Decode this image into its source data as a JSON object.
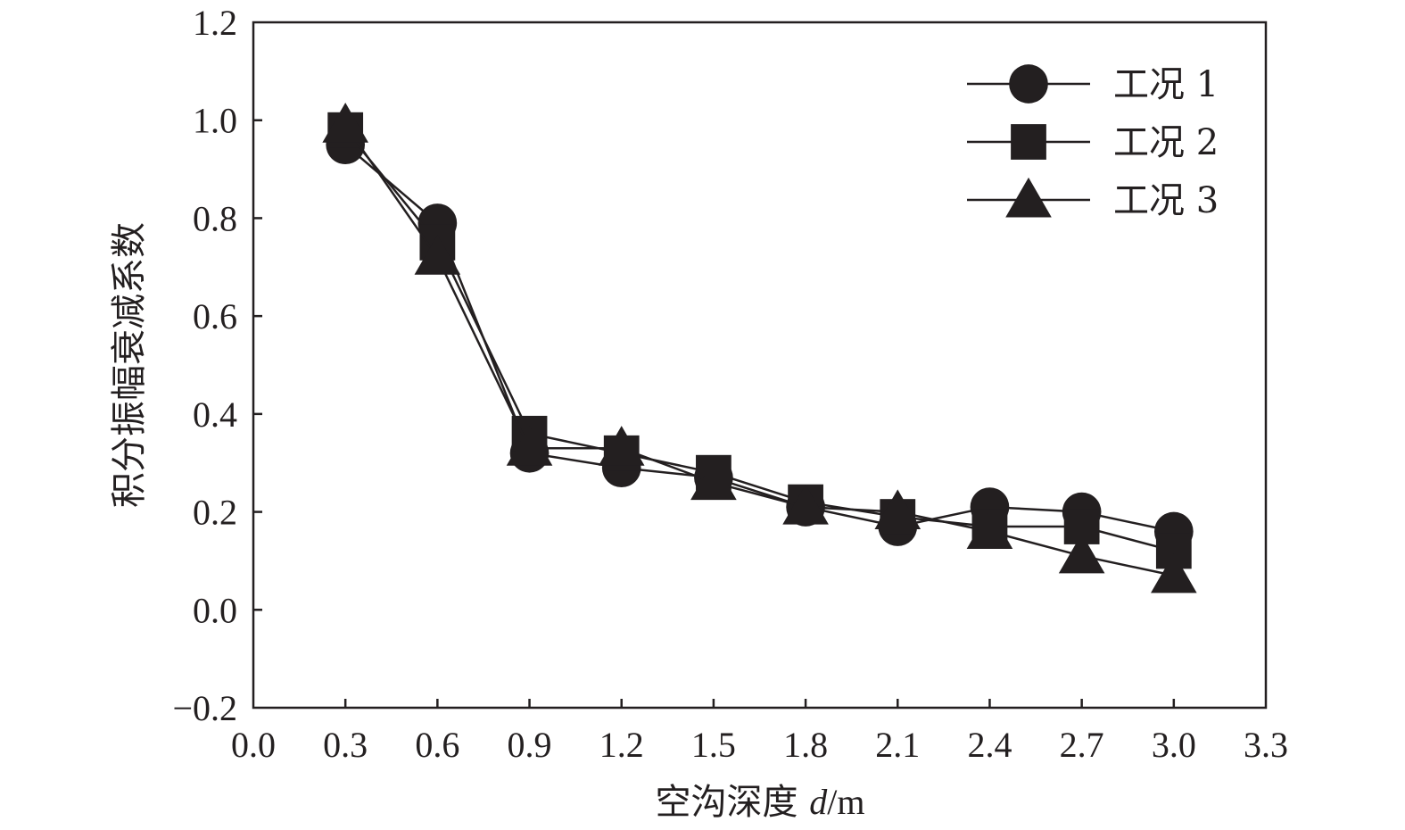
{
  "chart_data": {
    "type": "line",
    "xlabel": "空沟深度 d/m",
    "xlabel_prefix": "空沟深度 ",
    "xlabel_italic": "d",
    "xlabel_suffix": "/m",
    "ylabel": "积分振幅衰减系数",
    "xlim": [
      0.0,
      3.3
    ],
    "ylim": [
      -0.2,
      1.2
    ],
    "x_ticks": [
      "0.0",
      "0.3",
      "0.6",
      "0.9",
      "1.2",
      "1.5",
      "1.8",
      "2.1",
      "2.4",
      "2.7",
      "3.0",
      "3.3"
    ],
    "y_ticks": [
      "1.2",
      "1.0",
      "0.8",
      "0.6",
      "0.4",
      "0.2",
      "0.0",
      "−0.2"
    ],
    "legend_position": "top-right",
    "grid": false,
    "line_color": "#231f20",
    "x": [
      0.3,
      0.6,
      0.9,
      1.2,
      1.5,
      1.8,
      2.1,
      2.4,
      2.7,
      3.0
    ],
    "series": [
      {
        "name": "工况 1",
        "marker": "circle",
        "values": [
          0.95,
          0.79,
          0.32,
          0.29,
          0.27,
          0.21,
          0.17,
          0.21,
          0.2,
          0.16
        ]
      },
      {
        "name": "工况 2",
        "marker": "square",
        "values": [
          0.98,
          0.75,
          0.36,
          0.32,
          0.28,
          0.22,
          0.19,
          0.17,
          0.17,
          0.12
        ]
      },
      {
        "name": "工况 3",
        "marker": "triangle",
        "values": [
          0.99,
          0.72,
          0.33,
          0.33,
          0.26,
          0.21,
          0.2,
          0.16,
          0.11,
          0.07
        ]
      }
    ]
  }
}
